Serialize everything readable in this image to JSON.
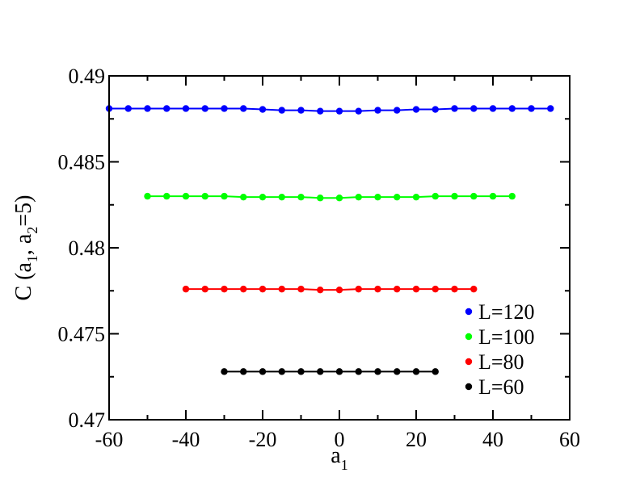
{
  "chart_data": {
    "type": "line",
    "title": "",
    "xlabel": "a",
    "xlabel_sub": "1",
    "ylabel_parts": [
      "C (a",
      "1",
      ", a",
      "2",
      "=5)"
    ],
    "xlim": [
      -60,
      60
    ],
    "ylim": [
      0.47,
      0.49
    ],
    "x_ticks": [
      -60,
      -40,
      -20,
      0,
      20,
      40,
      60
    ],
    "x_tick_labels": [
      "-60",
      "-40",
      "-20",
      "0",
      "20",
      "40",
      "60"
    ],
    "y_ticks": [
      0.47,
      0.475,
      0.48,
      0.485,
      0.49
    ],
    "y_tick_labels": [
      "0.47",
      "0.475",
      "0.48",
      "0.485",
      "0.49"
    ],
    "grid": false,
    "legend_position": "bottom-right",
    "series": [
      {
        "name": "L=120",
        "color": "#0000ff",
        "x": [
          -60,
          -55,
          -50,
          -45,
          -40,
          -35,
          -30,
          -25,
          -20,
          -15,
          -10,
          -5,
          0,
          5,
          10,
          15,
          20,
          25,
          30,
          35,
          40,
          45,
          50,
          55
        ],
        "y": [
          0.4881,
          0.4881,
          0.4881,
          0.4881,
          0.4881,
          0.4881,
          0.4881,
          0.4881,
          0.48805,
          0.488,
          0.488,
          0.48795,
          0.48795,
          0.48795,
          0.488,
          0.488,
          0.48805,
          0.48805,
          0.4881,
          0.4881,
          0.4881,
          0.4881,
          0.4881,
          0.4881
        ]
      },
      {
        "name": "L=100",
        "color": "#00ff00",
        "x": [
          -50,
          -45,
          -40,
          -35,
          -30,
          -25,
          -20,
          -15,
          -10,
          -5,
          0,
          5,
          10,
          15,
          20,
          25,
          30,
          35,
          40,
          45
        ],
        "y": [
          0.483,
          0.483,
          0.483,
          0.483,
          0.483,
          0.48295,
          0.48295,
          0.48295,
          0.48295,
          0.4829,
          0.4829,
          0.48295,
          0.48295,
          0.48295,
          0.48295,
          0.483,
          0.483,
          0.483,
          0.483,
          0.483
        ]
      },
      {
        "name": "L=80",
        "color": "#ff0000",
        "x": [
          -40,
          -35,
          -30,
          -25,
          -20,
          -15,
          -10,
          -5,
          0,
          5,
          10,
          15,
          20,
          25,
          30,
          35
        ],
        "y": [
          0.4776,
          0.4776,
          0.4776,
          0.4776,
          0.4776,
          0.4776,
          0.4776,
          0.47755,
          0.47755,
          0.4776,
          0.4776,
          0.4776,
          0.4776,
          0.4776,
          0.4776,
          0.4776
        ]
      },
      {
        "name": "L=60",
        "color": "#000000",
        "x": [
          -30,
          -25,
          -20,
          -15,
          -10,
          -5,
          0,
          5,
          10,
          15,
          20,
          25
        ],
        "y": [
          0.4728,
          0.4728,
          0.4728,
          0.4728,
          0.4728,
          0.4728,
          0.4728,
          0.4728,
          0.4728,
          0.4728,
          0.4728,
          0.4728
        ]
      }
    ]
  }
}
